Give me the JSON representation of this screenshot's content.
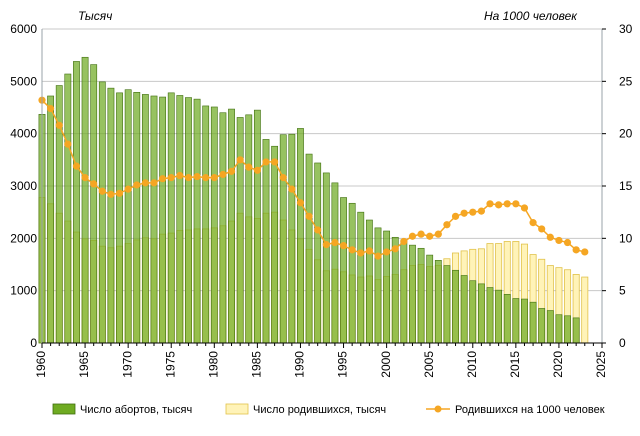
{
  "chart_data": {
    "type": "bar",
    "left_axis_label": "Тысяч",
    "right_axis_label": "На 1000 человек",
    "x_ticks": [
      "1960",
      "1965",
      "1970",
      "1975",
      "1980",
      "1985",
      "1990",
      "1995",
      "2000",
      "2005",
      "2010",
      "2015",
      "2020",
      "2025"
    ],
    "y_left_ticks": [
      "0",
      "1000",
      "2000",
      "3000",
      "4000",
      "5000",
      "6000"
    ],
    "y_right_ticks": [
      "0",
      "5",
      "10",
      "15",
      "20",
      "25",
      "30"
    ],
    "y_left_range": [
      0,
      6000
    ],
    "y_right_range": [
      0,
      30
    ],
    "x_range": [
      1960,
      2025
    ],
    "grid": true,
    "legend_position": "bottom",
    "colors": {
      "abortions": "#6fab22",
      "abortions_border": "#3f6e0e",
      "births": "#fff3b8",
      "births_border": "#e1c24a",
      "birth_rate": "#f5a623",
      "grid": "#c8c8c8"
    },
    "series": [
      {
        "name": "Число абортов, тысяч",
        "type": "bar",
        "axis": "left",
        "x": [
          1960,
          1961,
          1962,
          1963,
          1964,
          1965,
          1966,
          1967,
          1968,
          1969,
          1970,
          1971,
          1972,
          1973,
          1974,
          1975,
          1976,
          1977,
          1978,
          1979,
          1980,
          1981,
          1982,
          1983,
          1984,
          1985,
          1986,
          1987,
          1988,
          1989,
          1990,
          1991,
          1992,
          1993,
          1994,
          1995,
          1996,
          1997,
          1998,
          1999,
          2000,
          2001,
          2002,
          2003,
          2004,
          2005,
          2006,
          2007,
          2008,
          2009,
          2010,
          2011,
          2012,
          2013,
          2014,
          2015,
          2016,
          2017,
          2018,
          2019,
          2020,
          2021,
          2022
        ],
        "values": [
          4370,
          4720,
          4920,
          5140,
          5380,
          5460,
          5320,
          4990,
          4870,
          4780,
          4840,
          4790,
          4750,
          4720,
          4700,
          4780,
          4730,
          4690,
          4660,
          4530,
          4510,
          4400,
          4470,
          4310,
          4360,
          4450,
          3890,
          3760,
          3980,
          3990,
          4100,
          3610,
          3440,
          3250,
          3060,
          2780,
          2670,
          2500,
          2350,
          2200,
          2140,
          2020,
          1970,
          1870,
          1810,
          1680,
          1580,
          1480,
          1390,
          1290,
          1190,
          1130,
          1060,
          1010,
          930,
          850,
          840,
          780,
          660,
          620,
          540,
          520,
          480
        ]
      },
      {
        "name": "Число родившихся, тысяч",
        "type": "bar",
        "axis": "left",
        "x": [
          1960,
          1961,
          1962,
          1963,
          1964,
          1965,
          1966,
          1967,
          1968,
          1969,
          1970,
          1971,
          1972,
          1973,
          1974,
          1975,
          1976,
          1977,
          1978,
          1979,
          1980,
          1981,
          1982,
          1983,
          1984,
          1985,
          1986,
          1987,
          1988,
          1989,
          1990,
          1991,
          1992,
          1993,
          1994,
          1995,
          1996,
          1997,
          1998,
          1999,
          2000,
          2001,
          2002,
          2003,
          2004,
          2005,
          2006,
          2007,
          2008,
          2009,
          2010,
          2011,
          2012,
          2013,
          2014,
          2015,
          2016,
          2017,
          2018,
          2019,
          2020,
          2021,
          2022,
          2023
        ],
        "values": [
          2780,
          2660,
          2480,
          2330,
          2120,
          1990,
          1960,
          1850,
          1820,
          1850,
          1900,
          1970,
          2010,
          1990,
          2080,
          2100,
          2150,
          2160,
          2180,
          2180,
          2200,
          2240,
          2330,
          2480,
          2410,
          2380,
          2480,
          2500,
          2350,
          2160,
          1990,
          1790,
          1590,
          1380,
          1410,
          1360,
          1300,
          1260,
          1280,
          1210,
          1270,
          1310,
          1400,
          1480,
          1500,
          1460,
          1480,
          1610,
          1720,
          1760,
          1790,
          1800,
          1900,
          1900,
          1940,
          1940,
          1890,
          1690,
          1600,
          1480,
          1440,
          1400,
          1310,
          1260
        ]
      },
      {
        "name": "Родившихся на 1000 человек",
        "type": "line",
        "axis": "right",
        "x": [
          1960,
          1961,
          1962,
          1963,
          1964,
          1965,
          1966,
          1967,
          1968,
          1969,
          1970,
          1971,
          1972,
          1973,
          1974,
          1975,
          1976,
          1977,
          1978,
          1979,
          1980,
          1981,
          1982,
          1983,
          1984,
          1985,
          1986,
          1987,
          1988,
          1989,
          1990,
          1991,
          1992,
          1993,
          1994,
          1995,
          1996,
          1997,
          1998,
          1999,
          2000,
          2001,
          2002,
          2003,
          2004,
          2005,
          2006,
          2007,
          2008,
          2009,
          2010,
          2011,
          2012,
          2013,
          2014,
          2015,
          2016,
          2017,
          2018,
          2019,
          2020,
          2021,
          2022,
          2023
        ],
        "values": [
          23.2,
          22.4,
          20.8,
          19.0,
          16.9,
          15.8,
          15.2,
          14.5,
          14.2,
          14.3,
          14.7,
          15.1,
          15.3,
          15.3,
          15.7,
          15.8,
          16.0,
          15.8,
          15.9,
          15.8,
          15.8,
          16.1,
          16.4,
          17.5,
          16.8,
          16.5,
          17.3,
          17.3,
          15.8,
          14.7,
          13.4,
          12.1,
          10.8,
          9.4,
          9.6,
          9.3,
          8.9,
          8.6,
          8.8,
          8.3,
          8.7,
          9.0,
          9.7,
          10.2,
          10.4,
          10.2,
          10.4,
          11.3,
          12.1,
          12.4,
          12.5,
          12.6,
          13.3,
          13.2,
          13.3,
          13.3,
          12.9,
          11.5,
          10.9,
          10.1,
          9.8,
          9.6,
          8.9,
          8.7
        ]
      }
    ]
  }
}
